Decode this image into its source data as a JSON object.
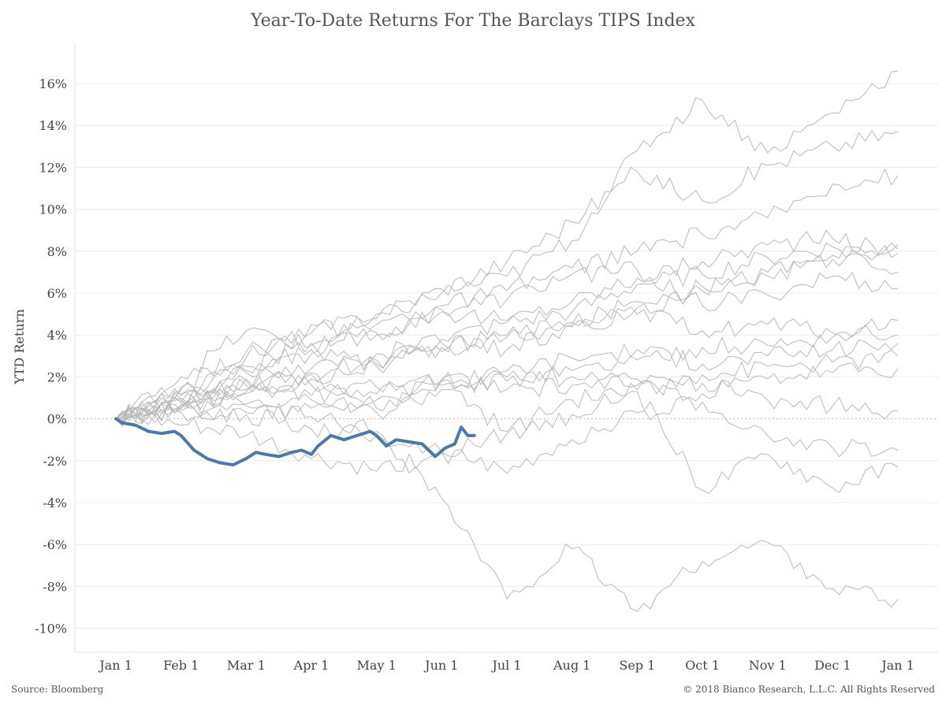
{
  "chart_data": {
    "type": "line",
    "title": "Year-To-Date Returns For The Barclays TIPS Index",
    "ylabel": "YTD Return",
    "xlabel": "",
    "x_ticks": [
      "Jan 1",
      "Feb 1",
      "Mar 1",
      "Apr 1",
      "May 1",
      "Jun 1",
      "Jul 1",
      "Aug 1",
      "Sep 1",
      "Oct 1",
      "Nov 1",
      "Dec 1",
      "Jan 1"
    ],
    "y_ticks": [
      "16%",
      "14%",
      "12%",
      "10%",
      "8%",
      "6%",
      "4%",
      "2%",
      "0%",
      "-2%",
      "-4%",
      "-6%",
      "-8%",
      "-10%"
    ],
    "ylim": [
      -10.5,
      18
    ],
    "grid": true,
    "colors": {
      "current": "#4e79a7",
      "history": "#b9b9b9",
      "grid": "#ececec",
      "zero": "#bdbdbd"
    },
    "x_unit": "month offset from Jan 1",
    "series": [
      {
        "name": "",
        "highlight": true,
        "points": [
          [
            0,
            0
          ],
          [
            0.1,
            -0.2
          ],
          [
            0.3,
            -0.3
          ],
          [
            0.5,
            -0.6
          ],
          [
            0.7,
            -0.7
          ],
          [
            0.9,
            -0.6
          ],
          [
            1,
            -0.8
          ],
          [
            1.2,
            -1.5
          ],
          [
            1.4,
            -1.9
          ],
          [
            1.6,
            -2.1
          ],
          [
            1.8,
            -2.2
          ],
          [
            2,
            -1.9
          ],
          [
            2.15,
            -1.6
          ],
          [
            2.3,
            -1.7
          ],
          [
            2.5,
            -1.8
          ],
          [
            2.7,
            -1.6
          ],
          [
            2.85,
            -1.5
          ],
          [
            3,
            -1.7
          ],
          [
            3.1,
            -1.3
          ],
          [
            3.3,
            -0.8
          ],
          [
            3.5,
            -1.0
          ],
          [
            3.7,
            -0.8
          ],
          [
            3.9,
            -0.6
          ],
          [
            4,
            -0.8
          ],
          [
            4.15,
            -1.3
          ],
          [
            4.3,
            -1.0
          ],
          [
            4.5,
            -1.1
          ],
          [
            4.7,
            -1.2
          ],
          [
            4.8,
            -1.5
          ],
          [
            4.9,
            -1.8
          ],
          [
            5.05,
            -1.4
          ],
          [
            5.2,
            -1.2
          ],
          [
            5.3,
            -0.4
          ],
          [
            5.4,
            -0.8
          ],
          [
            5.5,
            -0.8
          ]
        ]
      },
      {
        "name": "",
        "points": [
          [
            0,
            0
          ],
          [
            1,
            0.8
          ],
          [
            2,
            1.6
          ],
          [
            3,
            2.1
          ],
          [
            4,
            2.8
          ],
          [
            5,
            3.4
          ],
          [
            6,
            4.0
          ],
          [
            7,
            4.6
          ],
          [
            8,
            5.3
          ],
          [
            9,
            6.1
          ],
          [
            10,
            6.8
          ],
          [
            11,
            7.6
          ],
          [
            12,
            8.3
          ]
        ]
      },
      {
        "name": "",
        "points": [
          [
            0,
            0
          ],
          [
            1,
            1.5
          ],
          [
            2,
            3.2
          ],
          [
            3,
            4.1
          ],
          [
            4,
            5.0
          ],
          [
            5,
            6.2
          ],
          [
            6,
            7.5
          ],
          [
            7,
            9.4
          ],
          [
            8,
            11.8
          ],
          [
            9,
            10.4
          ],
          [
            10,
            12.1
          ],
          [
            11,
            13.0
          ],
          [
            12,
            13.7
          ]
        ]
      },
      {
        "name": "",
        "points": [
          [
            0,
            0
          ],
          [
            1,
            2.0
          ],
          [
            2,
            4.2
          ],
          [
            3,
            3.5
          ],
          [
            4,
            4.8
          ],
          [
            5,
            6.0
          ],
          [
            6,
            6.8
          ],
          [
            7,
            8.5
          ],
          [
            8,
            12.8
          ],
          [
            9,
            15.2
          ],
          [
            10,
            12.7
          ],
          [
            11,
            14.6
          ],
          [
            12,
            16.6
          ]
        ]
      },
      {
        "name": "",
        "points": [
          [
            0,
            0
          ],
          [
            1,
            0.5
          ],
          [
            2,
            1.2
          ],
          [
            3,
            1.9
          ],
          [
            4,
            2.6
          ],
          [
            5,
            3.2
          ],
          [
            6,
            3.9
          ],
          [
            7,
            4.5
          ],
          [
            8,
            5.6
          ],
          [
            9,
            6.3
          ],
          [
            10,
            7.0
          ],
          [
            11,
            7.8
          ],
          [
            12,
            8.1
          ]
        ]
      },
      {
        "name": "",
        "points": [
          [
            0,
            0
          ],
          [
            1,
            1.2
          ],
          [
            2,
            2.5
          ],
          [
            3,
            3.6
          ],
          [
            4,
            4.5
          ],
          [
            5,
            5.4
          ],
          [
            6,
            6.1
          ],
          [
            7,
            7.2
          ],
          [
            8,
            8.0
          ],
          [
            9,
            8.8
          ],
          [
            10,
            9.6
          ],
          [
            11,
            11.2
          ],
          [
            12,
            11.6
          ]
        ]
      },
      {
        "name": "",
        "points": [
          [
            0,
            0
          ],
          [
            1,
            0.9
          ],
          [
            2,
            2.2
          ],
          [
            3,
            3.1
          ],
          [
            4,
            2.5
          ],
          [
            5,
            3.8
          ],
          [
            6,
            4.6
          ],
          [
            7,
            5.1
          ],
          [
            8,
            6.4
          ],
          [
            9,
            6.9
          ],
          [
            10,
            7.7
          ],
          [
            11,
            8.2
          ],
          [
            12,
            7.0
          ]
        ]
      },
      {
        "name": "",
        "points": [
          [
            0,
            0
          ],
          [
            1,
            1.4
          ],
          [
            2,
            2.9
          ],
          [
            3,
            4.5
          ],
          [
            4,
            4.0
          ],
          [
            5,
            5.2
          ],
          [
            6,
            5.7
          ],
          [
            7,
            6.9
          ],
          [
            8,
            7.1
          ],
          [
            9,
            5.4
          ],
          [
            10,
            5.9
          ],
          [
            11,
            6.8
          ],
          [
            12,
            6.2
          ]
        ]
      },
      {
        "name": "",
        "points": [
          [
            0,
            0
          ],
          [
            1,
            0.6
          ],
          [
            2,
            1.3
          ],
          [
            3,
            1.6
          ],
          [
            4,
            1.2
          ],
          [
            5,
            1.8
          ],
          [
            6,
            2.0
          ],
          [
            7,
            2.3
          ],
          [
            8,
            2.8
          ],
          [
            9,
            3.4
          ],
          [
            10,
            3.5
          ],
          [
            11,
            3.9
          ],
          [
            12,
            4.7
          ]
        ]
      },
      {
        "name": "",
        "points": [
          [
            0,
            0
          ],
          [
            1,
            0.3
          ],
          [
            2,
            0.7
          ],
          [
            3,
            1.1
          ],
          [
            4,
            1.5
          ],
          [
            5,
            1.9
          ],
          [
            6,
            1.4
          ],
          [
            7,
            1.6
          ],
          [
            8,
            1.9
          ],
          [
            9,
            2.1
          ],
          [
            10,
            2.5
          ],
          [
            11,
            2.7
          ],
          [
            12,
            3.0
          ]
        ]
      },
      {
        "name": "",
        "points": [
          [
            0,
            0
          ],
          [
            1,
            0.4
          ],
          [
            2,
            0.3
          ],
          [
            3,
            0.5
          ],
          [
            4,
            0.9
          ],
          [
            5,
            1.6
          ],
          [
            6,
            1.8
          ],
          [
            7,
            2.0
          ],
          [
            8,
            1.6
          ],
          [
            9,
            1.2
          ],
          [
            10,
            1.9
          ],
          [
            11,
            2.2
          ],
          [
            12,
            2.4
          ]
        ]
      },
      {
        "name": "",
        "points": [
          [
            0,
            0
          ],
          [
            1,
            0.7
          ],
          [
            2,
            1.8
          ],
          [
            3,
            0.9
          ],
          [
            4,
            0.3
          ],
          [
            5,
            1.4
          ],
          [
            6,
            2.3
          ],
          [
            7,
            2.9
          ],
          [
            8,
            3.3
          ],
          [
            9,
            2.6
          ],
          [
            10,
            3.0
          ],
          [
            11,
            3.3
          ],
          [
            12,
            3.6
          ]
        ]
      },
      {
        "name": "",
        "points": [
          [
            0,
            0
          ],
          [
            1,
            0.5
          ],
          [
            2,
            0.2
          ],
          [
            3,
            -0.5
          ],
          [
            4,
            -0.8
          ],
          [
            5,
            -1.6
          ],
          [
            6,
            -0.7
          ],
          [
            7,
            0.2
          ],
          [
            8,
            1.4
          ],
          [
            9,
            1.7
          ],
          [
            10,
            0.9
          ],
          [
            11,
            0.6
          ],
          [
            12,
            0.4
          ]
        ]
      },
      {
        "name": "",
        "points": [
          [
            0,
            0
          ],
          [
            1,
            -0.3
          ],
          [
            2,
            -0.8
          ],
          [
            3,
            -1.9
          ],
          [
            4,
            -2.5
          ],
          [
            5,
            -1.6
          ],
          [
            6,
            -2.6
          ],
          [
            7,
            -1.0
          ],
          [
            8,
            0.3
          ],
          [
            9,
            0.8
          ],
          [
            10,
            -0.8
          ],
          [
            11,
            -1.4
          ],
          [
            12,
            -1.5
          ]
        ]
      },
      {
        "name": "",
        "points": [
          [
            0,
            0
          ],
          [
            1,
            0.8
          ],
          [
            2,
            1.4
          ],
          [
            3,
            2.2
          ],
          [
            4,
            0.5
          ],
          [
            5,
            1.8
          ],
          [
            6,
            -0.6
          ],
          [
            7,
            0.9
          ],
          [
            8,
            1.3
          ],
          [
            9,
            -3.4
          ],
          [
            10,
            -1.7
          ],
          [
            11,
            -3.3
          ],
          [
            12,
            -2.3
          ]
        ]
      },
      {
        "name": "",
        "points": [
          [
            0,
            0
          ],
          [
            1,
            1.1
          ],
          [
            2,
            0.6
          ],
          [
            3,
            0.1
          ],
          [
            4,
            -0.6
          ],
          [
            5,
            -3.8
          ],
          [
            6,
            -8.6
          ],
          [
            7,
            -6.2
          ],
          [
            8,
            -9.2
          ],
          [
            9,
            -6.8
          ],
          [
            10,
            -5.9
          ],
          [
            11,
            -8.1
          ],
          [
            12,
            -8.6
          ]
        ]
      },
      {
        "name": "",
        "points": [
          [
            0,
            0
          ],
          [
            1,
            0.6
          ],
          [
            2,
            2.3
          ],
          [
            3,
            3.3
          ],
          [
            4,
            4.1
          ],
          [
            5,
            5.1
          ],
          [
            6,
            4.7
          ],
          [
            7,
            5.6
          ],
          [
            8,
            6.7
          ],
          [
            9,
            7.5
          ],
          [
            10,
            8.3
          ],
          [
            11,
            8.6
          ],
          [
            12,
            7.9
          ]
        ]
      },
      {
        "name": "",
        "points": [
          [
            0,
            0
          ],
          [
            1,
            1.0
          ],
          [
            2,
            1.9
          ],
          [
            3,
            2.4
          ],
          [
            4,
            3.1
          ],
          [
            5,
            3.6
          ],
          [
            6,
            3.3
          ],
          [
            7,
            4.4
          ],
          [
            8,
            5.0
          ],
          [
            9,
            4.2
          ],
          [
            10,
            4.5
          ],
          [
            11,
            4.1
          ],
          [
            12,
            4.0
          ]
        ]
      }
    ]
  },
  "footer": {
    "source": "Source: Bloomberg",
    "copyright": "© 2018 Bianco Research, L.L.C. All Rights Reserved"
  }
}
